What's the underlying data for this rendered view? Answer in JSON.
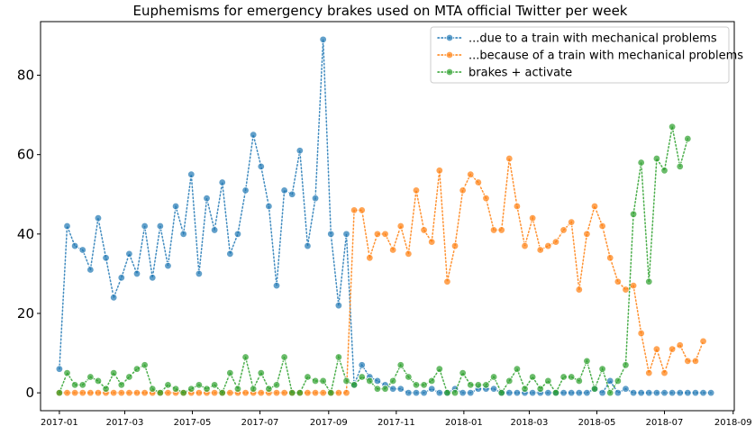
{
  "chart_data": {
    "type": "line",
    "title": "Euphemisms for emergency brakes used on MTA official Twitter per week",
    "xlabel": "",
    "ylabel": "",
    "x_tick_labels": [
      "2017-01",
      "2017-03",
      "2017-05",
      "2017-07",
      "2017-09",
      "2017-11",
      "2018-01",
      "2018-03",
      "2018-05",
      "2018-07",
      "2018-09"
    ],
    "x_ticks": [
      "2017-01-01",
      "2017-03-01",
      "2017-05-01",
      "2017-07-01",
      "2017-09-01",
      "2017-11-01",
      "2018-01-01",
      "2018-03-01",
      "2018-05-01",
      "2018-07-01",
      "2018-09-01"
    ],
    "y_ticks": [
      0,
      20,
      40,
      60,
      80
    ],
    "x_range": [
      "2016-12-15",
      "2018-09-02"
    ],
    "ylim": [
      -4.5,
      93.5
    ],
    "grid": false,
    "legend_position": "top-right",
    "marker": "circle",
    "line_style": "dotted",
    "x_start": "2017-01-01",
    "x_step_days": 7,
    "series": [
      {
        "name": "...due to a train with mechanical problems",
        "color": "#1f77b4",
        "values": [
          6,
          42,
          37,
          36,
          31,
          44,
          34,
          24,
          29,
          35,
          30,
          42,
          29,
          42,
          32,
          47,
          40,
          55,
          30,
          49,
          41,
          53,
          35,
          40,
          51,
          65,
          57,
          47,
          27,
          51,
          50,
          61,
          37,
          49,
          89,
          40,
          22,
          40,
          2,
          7,
          4,
          3,
          2,
          1,
          1,
          0,
          0,
          0,
          1,
          0,
          0,
          1,
          0,
          0,
          1,
          1,
          1,
          0,
          0,
          0,
          0,
          0,
          0,
          0,
          0,
          0,
          0,
          0,
          0,
          1,
          0,
          3,
          0,
          1,
          0,
          0,
          0,
          0,
          0,
          0,
          0,
          0,
          0,
          0,
          0
        ]
      },
      {
        "name": "...because of a train with mechanical problems",
        "color": "#ff7f0e",
        "values": [
          0,
          0,
          0,
          0,
          0,
          0,
          0,
          0,
          0,
          0,
          0,
          0,
          0,
          0,
          0,
          0,
          0,
          0,
          0,
          0,
          0,
          0,
          0,
          0,
          0,
          0,
          0,
          0,
          0,
          0,
          0,
          0,
          0,
          0,
          0,
          0,
          0,
          0,
          46,
          46,
          34,
          40,
          40,
          36,
          42,
          35,
          51,
          41,
          38,
          56,
          28,
          37,
          51,
          55,
          53,
          49,
          41,
          41,
          59,
          47,
          37,
          44,
          36,
          37,
          38,
          41,
          43,
          26,
          40,
          47,
          42,
          34,
          28,
          26,
          27,
          15,
          5,
          11,
          5,
          11,
          12,
          8,
          8,
          13
        ]
      },
      {
        "name": "brakes + activate",
        "color": "#2ca02c",
        "values": [
          0,
          5,
          2,
          2,
          4,
          3,
          1,
          5,
          2,
          4,
          6,
          7,
          1,
          0,
          2,
          1,
          0,
          1,
          2,
          1,
          2,
          0,
          5,
          1,
          9,
          1,
          5,
          1,
          2,
          9,
          0,
          0,
          4,
          3,
          3,
          0,
          9,
          3,
          2,
          4,
          3,
          1,
          1,
          3,
          7,
          4,
          2,
          2,
          3,
          6,
          0,
          0,
          5,
          2,
          2,
          2,
          4,
          0,
          3,
          6,
          1,
          4,
          1,
          3,
          0,
          4,
          4,
          3,
          8,
          1,
          6,
          0,
          3,
          7,
          45,
          58,
          28,
          59,
          56,
          67,
          57,
          64
        ]
      }
    ]
  }
}
